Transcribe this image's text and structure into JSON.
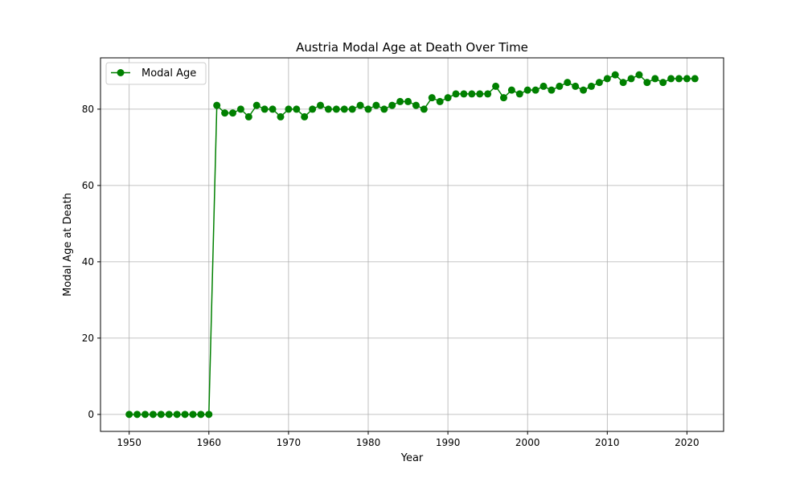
{
  "chart_data": {
    "type": "line",
    "title": "Austria Modal Age at Death Over Time",
    "xlabel": "Year",
    "ylabel": "Modal Age at Death",
    "xlim": [
      1946.4,
      2024.6
    ],
    "ylim": [
      -4.45,
      93.45
    ],
    "xticks": [
      1950,
      1960,
      1970,
      1980,
      1990,
      2000,
      2010,
      2020
    ],
    "yticks": [
      0,
      20,
      40,
      60,
      80
    ],
    "grid": true,
    "legend": "top-left",
    "series": [
      {
        "name": "Modal Age",
        "color": "#008000",
        "marker": "circle",
        "x": [
          1950,
          1951,
          1952,
          1953,
          1954,
          1955,
          1956,
          1957,
          1958,
          1959,
          1960,
          1961,
          1962,
          1963,
          1964,
          1965,
          1966,
          1967,
          1968,
          1969,
          1970,
          1971,
          1972,
          1973,
          1974,
          1975,
          1976,
          1977,
          1978,
          1979,
          1980,
          1981,
          1982,
          1983,
          1984,
          1985,
          1986,
          1987,
          1988,
          1989,
          1990,
          1991,
          1992,
          1993,
          1994,
          1995,
          1996,
          1997,
          1998,
          1999,
          2000,
          2001,
          2002,
          2003,
          2004,
          2005,
          2006,
          2007,
          2008,
          2009,
          2010,
          2011,
          2012,
          2013,
          2014,
          2015,
          2016,
          2017,
          2018,
          2019,
          2020,
          2021
        ],
        "y": [
          0,
          0,
          0,
          0,
          0,
          0,
          0,
          0,
          0,
          0,
          0,
          81,
          79,
          79,
          80,
          78,
          81,
          80,
          80,
          78,
          80,
          80,
          78,
          80,
          81,
          80,
          80,
          80,
          80,
          81,
          80,
          81,
          80,
          81,
          82,
          82,
          81,
          80,
          83,
          82,
          83,
          84,
          84,
          84,
          84,
          84,
          86,
          83,
          85,
          84,
          85,
          85,
          86,
          85,
          86,
          87,
          86,
          85,
          86,
          87,
          88,
          89,
          87,
          88,
          89,
          87,
          88,
          87,
          88,
          88,
          88,
          88
        ]
      }
    ]
  }
}
